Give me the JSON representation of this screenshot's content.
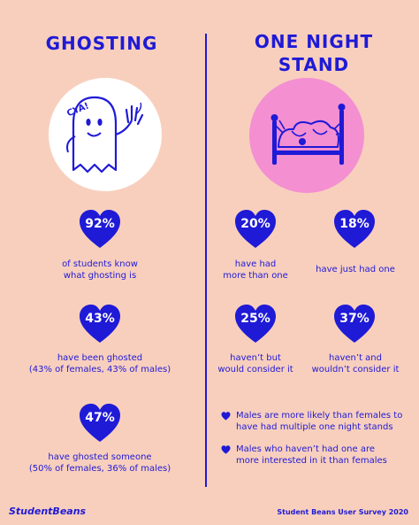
{
  "colors": {
    "background": "#f8cfbd",
    "primary": "#1f1ad6",
    "pink": "#f48fd2",
    "white": "#ffffff"
  },
  "ghosting": {
    "title": "GHOSTING",
    "illustration_text": "CYA!",
    "stats": [
      {
        "value": "92%",
        "line1": "of students know",
        "line2": "what ghosting is"
      },
      {
        "value": "43%",
        "line1": "have been ghosted",
        "line2": "(43% of females, 43% of males)"
      },
      {
        "value": "47%",
        "line1": "have ghosted someone",
        "line2": "(50% of females, 36% of males)"
      }
    ]
  },
  "one_night_stand": {
    "title_line1": "ONE NIGHT",
    "title_line2": "STAND",
    "stats": [
      {
        "value": "20%",
        "line1": "have had",
        "line2": "more than one"
      },
      {
        "value": "18%",
        "line1": "have just had one",
        "line2": ""
      },
      {
        "value": "25%",
        "line1": "haven’t but",
        "line2": "would consider it"
      },
      {
        "value": "37%",
        "line1": "haven’t and",
        "line2": "wouldn’t consider it"
      }
    ],
    "bullets": [
      {
        "line1": "Males are more likely than females to",
        "line2": "have had multiple one night stands"
      },
      {
        "line1": "Males who haven’t had one are",
        "line2": "more interested in it than females"
      }
    ]
  },
  "footer": {
    "brand": "StudentBeans",
    "survey": "Student Beans User Survey 2020"
  },
  "icons": [
    "heart-icon",
    "ghost-icon",
    "bed-icon"
  ]
}
